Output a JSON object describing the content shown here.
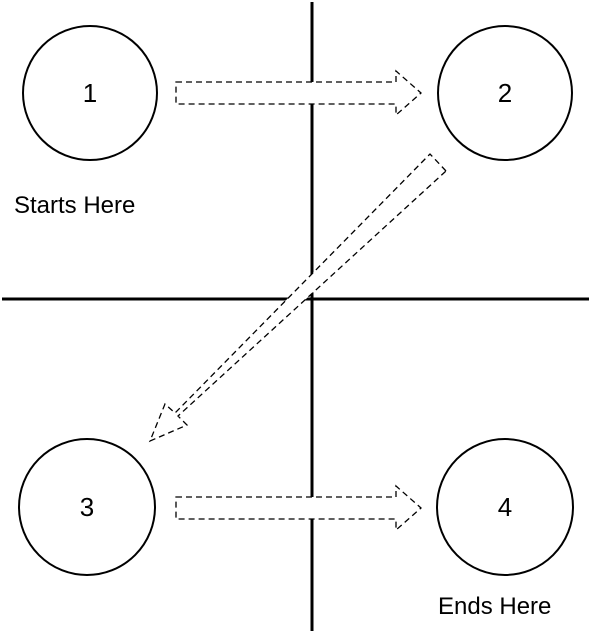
{
  "nodes": [
    {
      "id": "1",
      "label": "1"
    },
    {
      "id": "2",
      "label": "2"
    },
    {
      "id": "3",
      "label": "3"
    },
    {
      "id": "4",
      "label": "4"
    }
  ],
  "captions": {
    "start": "Starts Here",
    "end": "Ends Here"
  },
  "flow": [
    {
      "from": "1",
      "to": "2"
    },
    {
      "from": "2",
      "to": "3"
    },
    {
      "from": "3",
      "to": "4"
    }
  ],
  "colors": {
    "line": "#000000",
    "background": "#ffffff"
  }
}
